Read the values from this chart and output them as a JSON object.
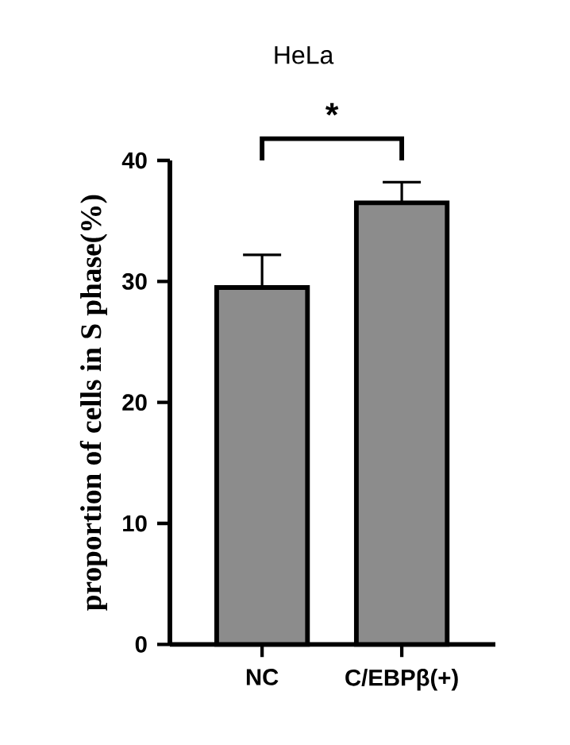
{
  "chart_data": {
    "type": "bar",
    "title": "HeLa",
    "ylabel": "proportion of cells in S phase(%)",
    "categories": [
      "NC",
      "C/EBPβ(+)"
    ],
    "values": [
      29.5,
      36.5
    ],
    "errors": [
      [
        29.5,
        32.2
      ],
      [
        36.5,
        38.2
      ]
    ],
    "color": "#8c8c8c",
    "ylim": [
      0,
      40
    ],
    "yticks": [
      0,
      10,
      20,
      30,
      40
    ],
    "annotations": [
      "*"
    ]
  }
}
